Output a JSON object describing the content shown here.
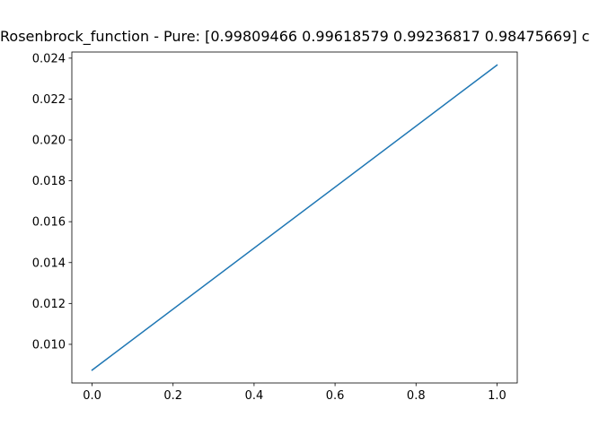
{
  "chart_data": {
    "type": "line",
    "title": "Rosenbrock_function - Pure: [0.99809466 0.99618579 0.99236817 0.98475669] c",
    "xlabel": "",
    "ylabel": "",
    "xlim": [
      -0.05,
      1.05
    ],
    "ylim": [
      0.00811,
      0.0243
    ],
    "x_ticks": [
      0.0,
      0.2,
      0.4,
      0.6,
      0.8,
      1.0
    ],
    "x_tick_labels": [
      "0.0",
      "0.2",
      "0.4",
      "0.6",
      "0.8",
      "1.0"
    ],
    "y_ticks": [
      0.01,
      0.012,
      0.014,
      0.016,
      0.018,
      0.02,
      0.022,
      0.024
    ],
    "y_tick_labels": [
      "0.010",
      "0.012",
      "0.014",
      "0.016",
      "0.018",
      "0.020",
      "0.022",
      "0.024"
    ],
    "grid": false,
    "series": [
      {
        "color": "#1f77b4",
        "x": [
          0.0,
          1.0
        ],
        "y": [
          0.00874,
          0.02366
        ]
      }
    ]
  }
}
